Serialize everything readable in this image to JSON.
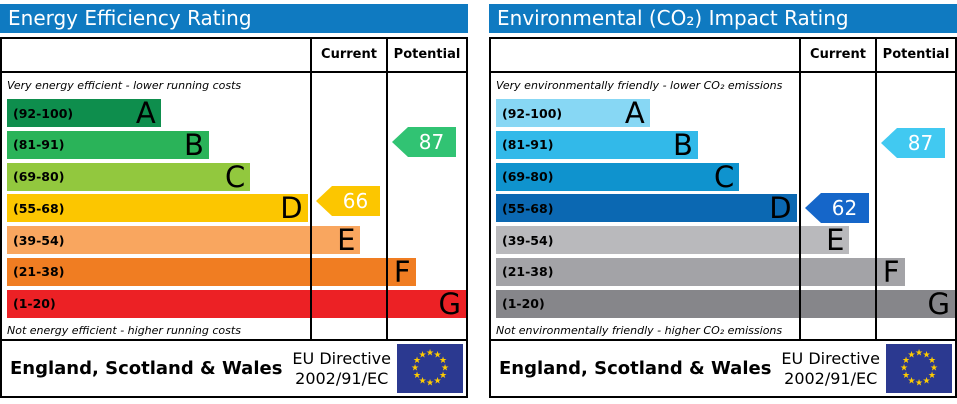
{
  "accent": "#0f7ac1",
  "icons": {
    "eu_star": "★"
  },
  "eu_flag": {
    "color": "#2b3990",
    "star_color": "#ffcc00"
  },
  "panels": [
    {
      "title": "Energy Efficiency Rating",
      "columns": {
        "current": "Current",
        "potential": "Potential"
      },
      "caption_top": "Very energy efficient - lower running costs",
      "caption_bottom": "Not energy efficient - higher running costs",
      "bands": [
        {
          "label": "(92-100)",
          "letter": "A",
          "color": "#0e8e4d",
          "width": "33.5%"
        },
        {
          "label": "(81-91)",
          "letter": "B",
          "color": "#2ab359",
          "width": "44%"
        },
        {
          "label": "(69-80)",
          "letter": "C",
          "color": "#92c83e",
          "width": "53%"
        },
        {
          "label": "(55-68)",
          "letter": "D",
          "color": "#fcc600",
          "width": "65.5%"
        },
        {
          "label": "(39-54)",
          "letter": "E",
          "color": "#f9a65f",
          "width": "77%"
        },
        {
          "label": "(21-38)",
          "letter": "F",
          "color": "#f07d22",
          "width": "89%"
        },
        {
          "label": "(1-20)",
          "letter": "G",
          "color": "#ec2125",
          "width": "100%"
        }
      ],
      "current": {
        "value": "66",
        "color": "#fcc600"
      },
      "potential": {
        "value": "87",
        "color": "#31c373"
      },
      "footer": {
        "region": "England, Scotland & Wales",
        "directive_line1": "EU Directive",
        "directive_line2": "2002/91/EC"
      }
    },
    {
      "title": "Environmental (CO₂) Impact Rating",
      "columns": {
        "current": "Current",
        "potential": "Potential"
      },
      "caption_top": "Very environmentally friendly - lower CO₂ emissions",
      "caption_bottom": "Not environmentally friendly - higher CO₂ emissions",
      "bands": [
        {
          "label": "(92-100)",
          "letter": "A",
          "color": "#87d7f4",
          "width": "33.5%"
        },
        {
          "label": "(81-91)",
          "letter": "B",
          "color": "#32b9e9",
          "width": "44%"
        },
        {
          "label": "(69-80)",
          "letter": "C",
          "color": "#0f93ce",
          "width": "53%"
        },
        {
          "label": "(55-68)",
          "letter": "D",
          "color": "#0b68b2",
          "width": "65.5%"
        },
        {
          "label": "(39-54)",
          "letter": "E",
          "color": "#b9b9bc",
          "width": "77%"
        },
        {
          "label": "(21-38)",
          "letter": "F",
          "color": "#a3a3a7",
          "width": "89%"
        },
        {
          "label": "(1-20)",
          "letter": "G",
          "color": "#86868a",
          "width": "100%"
        }
      ],
      "current": {
        "value": "62",
        "color": "#1566c9"
      },
      "potential": {
        "value": "87",
        "color": "#41c9f1"
      },
      "footer": {
        "region": "England, Scotland & Wales",
        "directive_line1": "EU Directive",
        "directive_line2": "2002/91/EC"
      }
    }
  ],
  "chart_data": [
    {
      "type": "bar",
      "title": "Energy Efficiency Rating",
      "orientation": "horizontal",
      "categories": [
        "A",
        "B",
        "C",
        "D",
        "E",
        "F",
        "G"
      ],
      "band_ranges": [
        "92-100",
        "81-91",
        "69-80",
        "55-68",
        "39-54",
        "21-38",
        "1-20"
      ],
      "band_relative_widths_pct": [
        33.5,
        44,
        53,
        65.5,
        77,
        89,
        100
      ],
      "series": [
        {
          "name": "Current",
          "value": 66,
          "band": "D"
        },
        {
          "name": "Potential",
          "value": 87,
          "band": "B"
        }
      ],
      "xlim": [
        1,
        100
      ],
      "top_note": "Very energy efficient - lower running costs",
      "bottom_note": "Not energy efficient - higher running costs",
      "region": "England, Scotland & Wales",
      "directive": "EU Directive 2002/91/EC"
    },
    {
      "type": "bar",
      "title": "Environmental (CO₂) Impact Rating",
      "orientation": "horizontal",
      "categories": [
        "A",
        "B",
        "C",
        "D",
        "E",
        "F",
        "G"
      ],
      "band_ranges": [
        "92-100",
        "81-91",
        "69-80",
        "55-68",
        "39-54",
        "21-38",
        "1-20"
      ],
      "band_relative_widths_pct": [
        33.5,
        44,
        53,
        65.5,
        77,
        89,
        100
      ],
      "series": [
        {
          "name": "Current",
          "value": 62,
          "band": "D"
        },
        {
          "name": "Potential",
          "value": 87,
          "band": "B"
        }
      ],
      "xlim": [
        1,
        100
      ],
      "top_note": "Very environmentally friendly - lower CO₂ emissions",
      "bottom_note": "Not environmentally friendly - higher CO₂ emissions",
      "region": "England, Scotland & Wales",
      "directive": "EU Directive 2002/91/EC"
    }
  ]
}
